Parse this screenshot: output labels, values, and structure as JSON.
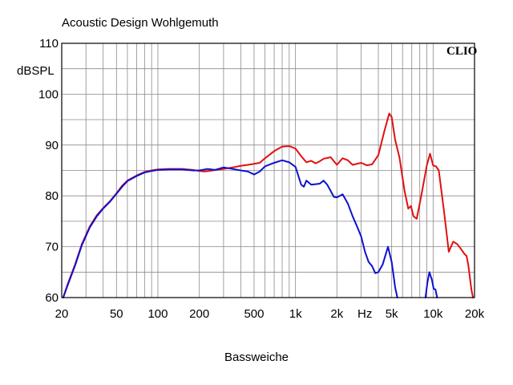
{
  "chart_data": {
    "type": "line",
    "title": "Acoustic Design Wohlgemuth",
    "ylabel": "dBSPL",
    "xlabel": "Bassweiche",
    "x_unit_label": "Hz",
    "brand": "CLIO",
    "x_scale": "log",
    "xlim": [
      20,
      20000
    ],
    "ylim": [
      60,
      110
    ],
    "grid": true,
    "x_ticks": [
      {
        "value": 20,
        "label": "20"
      },
      {
        "value": 50,
        "label": "50"
      },
      {
        "value": 100,
        "label": "100"
      },
      {
        "value": 200,
        "label": "200"
      },
      {
        "value": 500,
        "label": "500"
      },
      {
        "value": 1000,
        "label": "1k"
      },
      {
        "value": 2000,
        "label": "2k"
      },
      {
        "value": 5000,
        "label": "5k"
      },
      {
        "value": 10000,
        "label": "10k"
      },
      {
        "value": 20000,
        "label": "20k"
      }
    ],
    "y_ticks": [
      60,
      70,
      80,
      90,
      100,
      110
    ],
    "series": [
      {
        "color": "#e01010",
        "points": [
          [
            20.5,
            60.0
          ],
          [
            22,
            62.5
          ],
          [
            25,
            66.5
          ],
          [
            28,
            70.5
          ],
          [
            32,
            74.0
          ],
          [
            36,
            76.2
          ],
          [
            40,
            77.6
          ],
          [
            45,
            79.0
          ],
          [
            50,
            80.5
          ],
          [
            55,
            82.0
          ],
          [
            60,
            83.0
          ],
          [
            70,
            84.0
          ],
          [
            80,
            84.7
          ],
          [
            90,
            85.0
          ],
          [
            100,
            85.2
          ],
          [
            120,
            85.3
          ],
          [
            150,
            85.3
          ],
          [
            180,
            85.1
          ],
          [
            200,
            84.9
          ],
          [
            220,
            84.8
          ],
          [
            250,
            85.0
          ],
          [
            280,
            85.2
          ],
          [
            300,
            85.3
          ],
          [
            350,
            85.6
          ],
          [
            400,
            85.9
          ],
          [
            450,
            86.1
          ],
          [
            500,
            86.3
          ],
          [
            550,
            86.5
          ],
          [
            600,
            87.4
          ],
          [
            700,
            88.8
          ],
          [
            800,
            89.7
          ],
          [
            900,
            89.8
          ],
          [
            1000,
            89.3
          ],
          [
            1100,
            87.8
          ],
          [
            1200,
            86.6
          ],
          [
            1300,
            86.9
          ],
          [
            1400,
            86.4
          ],
          [
            1500,
            86.8
          ],
          [
            1600,
            87.3
          ],
          [
            1800,
            87.6
          ],
          [
            2000,
            86.1
          ],
          [
            2200,
            87.4
          ],
          [
            2400,
            87.0
          ],
          [
            2600,
            86.1
          ],
          [
            2800,
            86.3
          ],
          [
            3000,
            86.5
          ],
          [
            3300,
            86.0
          ],
          [
            3600,
            86.2
          ],
          [
            4000,
            88.0
          ],
          [
            4400,
            92.5
          ],
          [
            4800,
            96.2
          ],
          [
            5000,
            95.5
          ],
          [
            5300,
            91.0
          ],
          [
            5700,
            87.5
          ],
          [
            6200,
            81.0
          ],
          [
            6600,
            77.5
          ],
          [
            6900,
            78.0
          ],
          [
            7200,
            76.0
          ],
          [
            7600,
            75.5
          ],
          [
            8200,
            80.0
          ],
          [
            9000,
            86.0
          ],
          [
            9500,
            88.3
          ],
          [
            10000,
            86.0
          ],
          [
            10500,
            85.8
          ],
          [
            11000,
            85.0
          ],
          [
            12000,
            77.0
          ],
          [
            13000,
            69.0
          ],
          [
            14000,
            71.0
          ],
          [
            15000,
            70.5
          ],
          [
            16000,
            69.5
          ],
          [
            17000,
            68.5
          ],
          [
            17500,
            68.2
          ],
          [
            18000,
            66.5
          ],
          [
            19000,
            61.5
          ],
          [
            19500,
            60.0
          ]
        ]
      },
      {
        "color": "#1010d0",
        "points": [
          [
            20.5,
            60.0
          ],
          [
            22,
            62.3
          ],
          [
            25,
            66.3
          ],
          [
            28,
            70.3
          ],
          [
            32,
            73.8
          ],
          [
            36,
            76.0
          ],
          [
            40,
            77.5
          ],
          [
            45,
            78.9
          ],
          [
            50,
            80.4
          ],
          [
            55,
            81.8
          ],
          [
            60,
            82.9
          ],
          [
            70,
            83.9
          ],
          [
            80,
            84.6
          ],
          [
            90,
            84.9
          ],
          [
            100,
            85.1
          ],
          [
            120,
            85.2
          ],
          [
            150,
            85.2
          ],
          [
            180,
            85.0
          ],
          [
            200,
            85.0
          ],
          [
            230,
            85.3
          ],
          [
            260,
            85.1
          ],
          [
            300,
            85.6
          ],
          [
            350,
            85.3
          ],
          [
            400,
            85.0
          ],
          [
            450,
            84.8
          ],
          [
            500,
            84.2
          ],
          [
            550,
            84.8
          ],
          [
            600,
            85.8
          ],
          [
            700,
            86.5
          ],
          [
            800,
            87.0
          ],
          [
            900,
            86.6
          ],
          [
            1000,
            85.7
          ],
          [
            1100,
            82.2
          ],
          [
            1150,
            81.8
          ],
          [
            1200,
            83.0
          ],
          [
            1300,
            82.2
          ],
          [
            1400,
            82.3
          ],
          [
            1500,
            82.4
          ],
          [
            1600,
            83.0
          ],
          [
            1700,
            82.2
          ],
          [
            1800,
            81.0
          ],
          [
            1900,
            79.8
          ],
          [
            2000,
            79.7
          ],
          [
            2200,
            80.3
          ],
          [
            2400,
            78.5
          ],
          [
            2600,
            76.0
          ],
          [
            2800,
            74.0
          ],
          [
            3000,
            72.0
          ],
          [
            3200,
            69.0
          ],
          [
            3400,
            67.0
          ],
          [
            3600,
            66.2
          ],
          [
            3800,
            64.8
          ],
          [
            4000,
            65.0
          ],
          [
            4300,
            66.5
          ],
          [
            4700,
            70.0
          ],
          [
            5000,
            67.0
          ],
          [
            5300,
            62.0
          ],
          [
            5500,
            60.0
          ],
          null,
          [
            8800,
            60.0
          ],
          [
            9100,
            63.0
          ],
          [
            9400,
            65.0
          ],
          [
            9800,
            63.5
          ],
          [
            10100,
            61.7
          ],
          [
            10400,
            61.6
          ],
          [
            10700,
            60.0
          ]
        ]
      }
    ]
  }
}
